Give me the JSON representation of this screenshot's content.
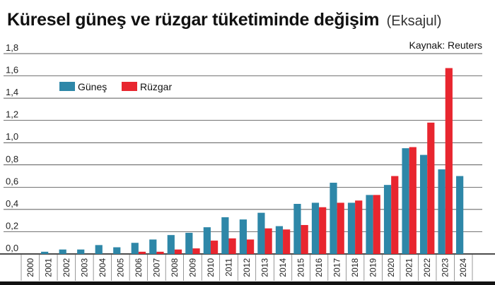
{
  "title": "Küresel güneş ve rüzgar tüketiminde değişim",
  "subtitle": "(Eksajul)",
  "source": "Kaynak: Reuters",
  "colors": {
    "solar": "#2e87a8",
    "wind": "#e8262f",
    "grid": "#222222",
    "axis": "#111111"
  },
  "chart_data": {
    "type": "bar",
    "title": "Küresel güneş ve rüzgar tüketiminde değişim",
    "subtitle": "(Eksajul)",
    "xlabel": "",
    "ylabel": "",
    "ylim": [
      0,
      1.8
    ],
    "yticks": [
      "0,0",
      "0,2",
      "0,4",
      "0,6",
      "0,8",
      "1,0",
      "1,2",
      "1,4",
      "1,6",
      "1,8"
    ],
    "legend_position": "top-left",
    "grid": true,
    "categories": [
      "2000",
      "2001",
      "2002",
      "2003",
      "2004",
      "2005",
      "2006",
      "2007",
      "2008",
      "2009",
      "2010",
      "2011",
      "2012",
      "2013",
      "2014",
      "2015",
      "2016",
      "2017",
      "2018",
      "2019",
      "2020",
      "2021",
      "2022",
      "2023",
      "2024"
    ],
    "series": [
      {
        "name": "Güneş",
        "color": "#2e87a8",
        "values": [
          0,
          0.02,
          0.04,
          0.04,
          0.08,
          0.06,
          0.1,
          0.13,
          0.17,
          0.19,
          0.24,
          0.33,
          0.31,
          0.37,
          0.25,
          0.45,
          0.46,
          0.64,
          0.46,
          0.53,
          0.62,
          0.95,
          0.89,
          0.76,
          0.7
        ]
      },
      {
        "name": "Rüzgar",
        "color": "#e8262f",
        "values": [
          0,
          0,
          0,
          0,
          0,
          0,
          0.02,
          0.02,
          0.04,
          0.05,
          0.12,
          0.14,
          0.13,
          0.23,
          0.22,
          0.26,
          0.42,
          0.46,
          0.48,
          0.53,
          0.7,
          0.96,
          1.18,
          1.67,
          null
        ]
      }
    ]
  }
}
